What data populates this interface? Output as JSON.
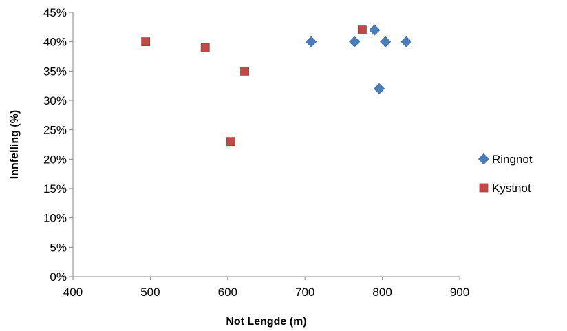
{
  "chart_data": {
    "type": "scatter",
    "title": "",
    "xlabel": "Not Lengde (m)",
    "ylabel": "Innfelling (%)",
    "xlim": [
      400,
      900
    ],
    "ylim": [
      0,
      45
    ],
    "x_ticks": [
      400,
      500,
      600,
      700,
      800,
      900
    ],
    "x_tick_labels": [
      "400",
      "500",
      "600",
      "700",
      "800",
      "900"
    ],
    "y_ticks": [
      0,
      5,
      10,
      15,
      20,
      25,
      30,
      35,
      40,
      45
    ],
    "y_tick_labels": [
      "0%",
      "5%",
      "10%",
      "15%",
      "20%",
      "25%",
      "30%",
      "35%",
      "40%",
      "45%"
    ],
    "grid": false,
    "legend_position": "right",
    "series": [
      {
        "name": "Ringnot",
        "marker": "diamond",
        "color": "#4a7ebb",
        "x": [
          708,
          764,
          790,
          804,
          831,
          796
        ],
        "y": [
          40,
          40,
          42,
          40,
          40,
          32
        ]
      },
      {
        "name": "Kystnot",
        "marker": "square",
        "color": "#be4b48",
        "x": [
          494,
          571,
          622,
          604,
          774
        ],
        "y": [
          40,
          39,
          35,
          23,
          42
        ]
      }
    ]
  }
}
